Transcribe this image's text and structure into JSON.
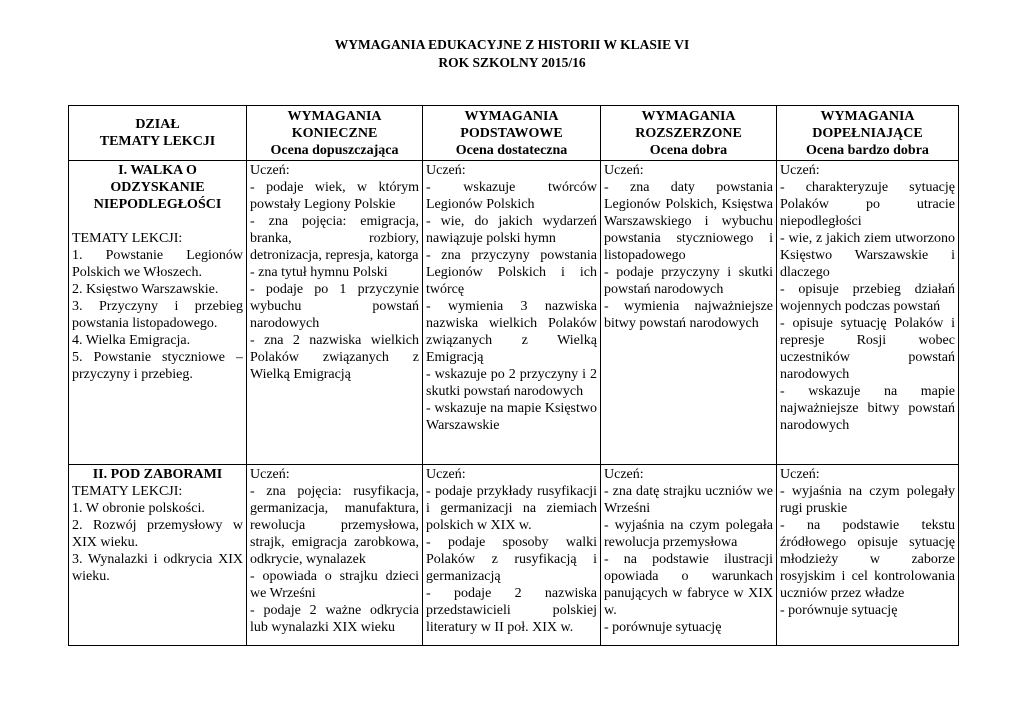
{
  "title": [
    "WYMAGANIA EDUKACYJNE Z HISTORII W KLASIE VI",
    "ROK SZKOLNY 2015/16"
  ],
  "headers": [
    [
      "DZIAŁ",
      "TEMATY LEKCJI"
    ],
    [
      "WYMAGANIA",
      "KONIECZNE",
      "Ocena dopuszczająca"
    ],
    [
      "WYMAGANIA",
      "PODSTAWOWE",
      "Ocena dostateczna"
    ],
    [
      "WYMAGANIA",
      "ROZSZERZONE",
      "Ocena dobra"
    ],
    [
      "WYMAGANIA",
      "DOPEŁNIAJĄCE",
      "Ocena bardzo dobra"
    ]
  ],
  "rows": [
    {
      "section": [
        "I. WALKA O",
        "ODZYSKANIE",
        "NIEPODLEGŁOŚCI"
      ],
      "topics_label": "TEMATY LEKCJI:",
      "topics": [
        "1. Powstanie Legionów Polskich we Włoszech.",
        "2. Księstwo Warszawskie.",
        "3. Przyczyny i przebieg powstania listopadowego.",
        "4. Wielka Emigracja.",
        "5. Powstanie styczniowe – przyczyny i przebieg."
      ],
      "cols": [
        [
          "Uczeń:",
          "- podaje wiek, w którym powstały Legiony Polskie",
          "- zna pojęcia: emigracja, branka, rozbiory, detronizacja, represja, katorga",
          "- zna tytuł hymnu Polski",
          "- podaje po 1 przyczynie wybuchu powstań narodowych",
          "- zna 2 nazwiska wielkich Polaków związanych z Wielką Emigracją"
        ],
        [
          "Uczeń:",
          "- wskazuje twórców Legionów Polskich",
          "- wie, do jakich wydarzeń nawiązuje polski hymn",
          "- zna przyczyny powstania Legionów Polskich i ich twórcę",
          "- wymienia 3 nazwiska nazwiska wielkich Polaków związanych z Wielką Emigracją",
          "- wskazuje po 2 przyczyny i 2 skutki powstań narodowych",
          "- wskazuje na mapie Księstwo Warszawskie"
        ],
        [
          "Uczeń:",
          "- zna daty powstania Legionów Polskich, Księstwa Warszawskiego i wybuchu powstania styczniowego i listopadowego",
          "- podaje przyczyny i skutki powstań narodowych",
          "- wymienia najważniejsze bitwy powstań narodowych"
        ],
        [
          "Uczeń:",
          "- charakteryzuje sytuację Polaków po utracie niepodległości",
          "- wie, z jakich ziem utworzono Księstwo Warszawskie i dlaczego",
          "- opisuje przebieg działań wojennych podczas powstań",
          "- opisuje sytuację Polaków i represje Rosji wobec uczestników powstań narodowych",
          "- wskazuje na mapie najważniejsze bitwy powstań narodowych"
        ]
      ]
    },
    {
      "section": [
        "II. POD ZABORAMI"
      ],
      "topics_label": "TEMATY LEKCJI:",
      "topics": [
        "1. W obronie polskości.",
        "2. Rozwój przemysłowy w XIX wieku.",
        "3. Wynalazki i odkrycia XIX wieku."
      ],
      "cols": [
        [
          "Uczeń:",
          "- zna pojęcia: rusyfikacja, germanizacja, manufaktura, rewolucja przemysłowa, strajk, emigracja zarobkowa, odkrycie, wynalazek",
          "- opowiada o strajku dzieci we Wrześni",
          "- podaje 2 ważne odkrycia lub wynalazki XIX wieku"
        ],
        [
          "Uczeń:",
          "- podaje przykłady rusyfikacji i germanizacji na ziemiach polskich w XIX w.",
          "- podaje sposoby walki Polaków z rusyfikacją i germanizacją",
          "- podaje 2 nazwiska przedstawicieli polskiej literatury w II poł. XIX w."
        ],
        [
          "Uczeń:",
          "- zna datę strajku uczniów we Wrześni",
          "- wyjaśnia na czym polegała rewolucja przemysłowa",
          "- na podstawie ilustracji opowiada o warunkach panujących w fabryce w XIX w.",
          "- porównuje sytuację"
        ],
        [
          "Uczeń:",
          "- wyjaśnia na czym polegały rugi pruskie",
          "- na podstawie tekstu źródłowego opisuje sytuację młodzieży w zaborze rosyjskim i cel kontrolowania uczniów przez władze",
          "- porównuje sytuację"
        ]
      ]
    }
  ]
}
